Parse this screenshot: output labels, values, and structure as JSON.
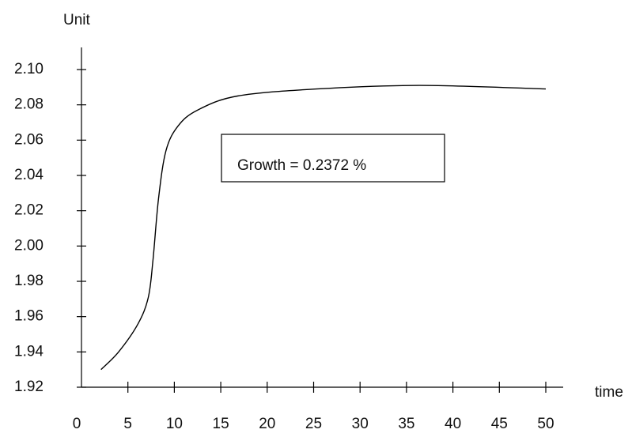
{
  "chart_data": {
    "type": "line",
    "y_label": "Unit",
    "x_label": "time",
    "annotation": "Growth = 0.2372 %",
    "x": [
      2.1,
      4.0,
      6.1,
      7.2,
      7.7,
      8.3,
      9.1,
      10.4,
      12.5,
      16.8,
      25.3,
      36.4,
      50
    ],
    "values": [
      1.93,
      1.94,
      1.956,
      1.971,
      1.992,
      2.027,
      2.054,
      2.068,
      2.077,
      2.085,
      2.089,
      2.091,
      2.089
    ],
    "color": "#000000",
    "xlim": [
      0,
      50
    ],
    "xticks": [
      0,
      5,
      10,
      15,
      20,
      25,
      30,
      35,
      40,
      45,
      50
    ],
    "ylim": [
      1.92,
      2.1
    ],
    "yticks": [
      1.92,
      1.94,
      1.96,
      1.98,
      {
        "value": 2.0,
        "label": "2.00"
      },
      2.02,
      2.04,
      2.06,
      2.08,
      {
        "value": 2.1,
        "label": "2.10"
      }
    ]
  }
}
